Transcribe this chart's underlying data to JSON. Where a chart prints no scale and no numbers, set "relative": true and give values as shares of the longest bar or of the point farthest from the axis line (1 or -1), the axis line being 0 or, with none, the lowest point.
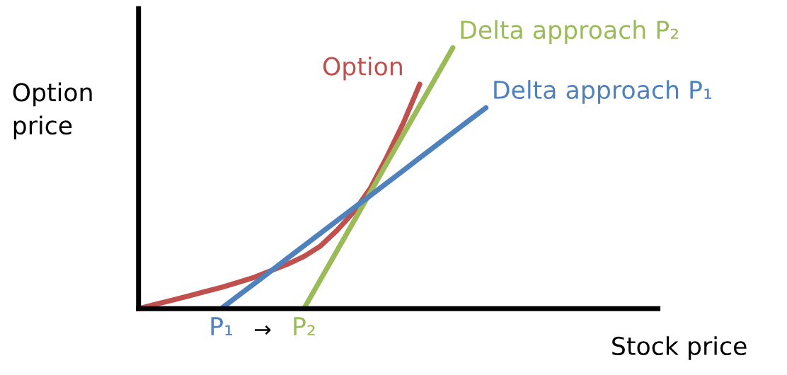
{
  "chart_data": {
    "type": "line",
    "relative": true,
    "xlabel": "Stock price",
    "ylabel": "Option\nprice",
    "annotations": [
      "→"
    ],
    "categories": [
      null,
      null,
      null,
      null,
      null,
      "P₁",
      null,
      null,
      null,
      null,
      "P₂",
      null,
      null,
      null,
      null,
      null,
      null,
      null,
      null,
      null,
      null,
      null,
      null,
      null,
      null,
      null,
      null,
      null,
      null,
      null,
      null,
      null
    ],
    "series": [
      {
        "name": "Option",
        "color": "#c0504d",
        "values": [
          0,
          0.016,
          0.032,
          0.048,
          0.065,
          0.081,
          0.1,
          0.12,
          0.145,
          0.17,
          0.2,
          0.24,
          0.3,
          0.37,
          0.46,
          0.58,
          0.71,
          0.86,
          null,
          null,
          null,
          null,
          null,
          null,
          null,
          null,
          null,
          null,
          null,
          null,
          null,
          null
        ]
      },
      {
        "name": "Delta approach P₂",
        "color": "#9bbb59",
        "values": [
          null,
          null,
          null,
          null,
          null,
          null,
          null,
          null,
          null,
          null,
          0,
          0.111,
          0.222,
          0.333,
          0.444,
          0.556,
          0.667,
          0.778,
          0.889,
          1.0,
          null,
          null,
          null,
          null,
          null,
          null,
          null,
          null,
          null,
          null,
          null,
          null
        ]
      },
      {
        "name": "Delta approach P₁",
        "color": "#4f81bd",
        "values": [
          null,
          null,
          null,
          null,
          null,
          0,
          0.048,
          0.096,
          0.144,
          0.193,
          0.241,
          0.289,
          0.337,
          0.385,
          0.433,
          0.481,
          0.529,
          0.578,
          0.626,
          0.674,
          0.722,
          0.77,
          null,
          null,
          null,
          null,
          null,
          null,
          null,
          null,
          null,
          null
        ]
      }
    ],
    "grid": false,
    "legend": false,
    "marker": "none",
    "line_style": "solid"
  }
}
